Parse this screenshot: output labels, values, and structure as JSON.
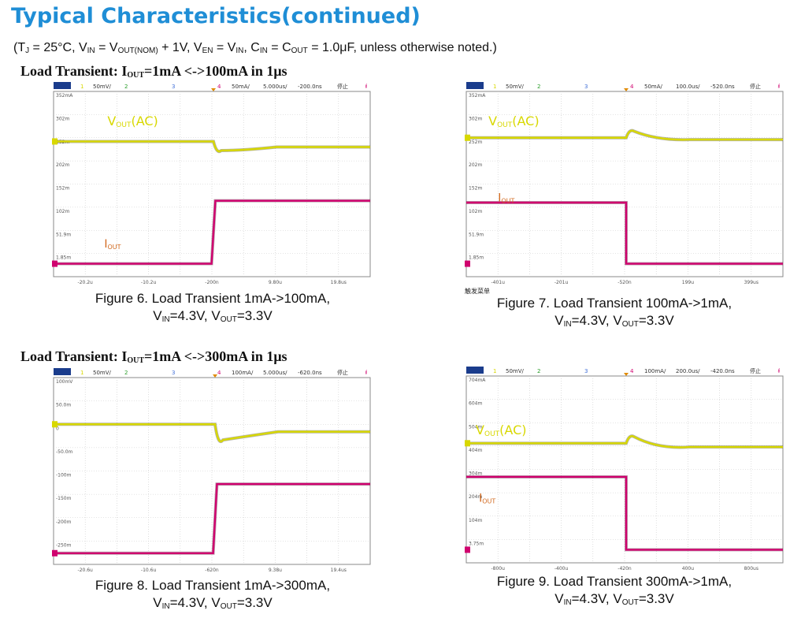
{
  "page": {
    "title": "Typical Characteristics(continued)",
    "conditions": {
      "c1": "(T",
      "c1s": "J",
      "c2": " = 25°C, V",
      "c2s": "IN",
      "c3": " = V",
      "c3s": "OUT(NOM)",
      "c4": " + 1V, V",
      "c4s": "EN",
      "c5": " = V",
      "c5s": "IN",
      "c6": ", C",
      "c6s": "IN",
      "c7": " = C",
      "c7s": "OUT",
      "c8": " = 1.0μF, unless otherwise noted.)"
    }
  },
  "sections": [
    {
      "pre": "Load Transient: I",
      "sub": "OUT",
      "post": "=1mA <->100mA in 1μs"
    },
    {
      "pre": "Load Transient: I",
      "sub": "OUT",
      "post": "=1mA <->300mA in 1μs"
    }
  ],
  "colors": {
    "vout_trace": "#d8d800",
    "iout_trace": "#d0006e",
    "label_vout": "#d8d800",
    "label_iout": "#d2691e",
    "grid": "#c9c9c9",
    "title": "#1f8ed6"
  },
  "figures": [
    {
      "id": "fig6",
      "header": {
        "ch1": "1",
        "ch1_scale": "50mV/",
        "ch2": "2",
        "ch3": "3",
        "ch4": "4",
        "ch4_scale": "50mA/",
        "timebase": "5.000us/",
        "offset": "-200.0ns",
        "state": "停止",
        "trig": "ᵮ"
      },
      "y_ticks": [
        "352mA",
        "302m",
        "252m",
        "202m",
        "152m",
        "102m",
        "51.9m",
        "1.85m"
      ],
      "x_ticks": [
        "-20.2u",
        "-10.2u",
        "-200n",
        "9.80u",
        "19.8us"
      ],
      "label_vout": {
        "pre": "V",
        "sub": "OUT",
        "post": "(AC)"
      },
      "label_iout": {
        "pre": "I",
        "sub": "OUT"
      },
      "caption_line1": "Figure 6. Load Transient 1mA->100mA,",
      "caption_line2": {
        "a": "V",
        "as": "IN",
        "b": "=4.3V, V",
        "bs": "OUT",
        "c": "=3.3V"
      },
      "extra_note": ""
    },
    {
      "id": "fig7",
      "header": {
        "ch1": "1",
        "ch1_scale": "50mV/",
        "ch2": "2",
        "ch3": "3",
        "ch4": "4",
        "ch4_scale": "50mA/",
        "timebase": "100.0us/",
        "offset": "-520.0ns",
        "state": "停止",
        "trig": "ᵮ"
      },
      "y_ticks": [
        "352mA",
        "302m",
        "252m",
        "202m",
        "152m",
        "102m",
        "51.9m",
        "1.85m"
      ],
      "x_ticks": [
        "-401u",
        "-201u",
        "-520n",
        "199u",
        "399us"
      ],
      "label_vout": {
        "pre": "V",
        "sub": "OUT",
        "post": "(AC)"
      },
      "label_iout": {
        "pre": "I",
        "sub": "OUT"
      },
      "caption_line1": "Figure 7. Load Transient 100mA->1mA,",
      "caption_line2": {
        "a": "V",
        "as": "IN",
        "b": "=4.3V, V",
        "bs": "OUT",
        "c": "=3.3V"
      },
      "extra_note": "触发菜单"
    },
    {
      "id": "fig8",
      "header": {
        "ch1": "1",
        "ch1_scale": "50mV/",
        "ch2": "2",
        "ch3": "3",
        "ch4": "4",
        "ch4_scale": "100mA/",
        "timebase": "5.000us/",
        "offset": "-620.0ns",
        "state": "停止",
        "trig": "ᵮ"
      },
      "y_ticks": [
        "100mV",
        "50.0m",
        "0",
        "-50.0m",
        "-100m",
        "-150m",
        "-200m",
        "-250m"
      ],
      "x_ticks": [
        "-20.6u",
        "-10.6u",
        "-620n",
        "9.38u",
        "19.4us"
      ],
      "label_vout": {
        "pre": "",
        "sub": "",
        "post": ""
      },
      "label_iout": {
        "pre": "",
        "sub": ""
      },
      "caption_line1": "Figure 8. Load Transient 1mA->300mA,",
      "caption_line2": {
        "a": "V",
        "as": "IN",
        "b": "=4.3V, V",
        "bs": "OUT",
        "c": "=3.3V"
      },
      "extra_note": ""
    },
    {
      "id": "fig9",
      "header": {
        "ch1": "1",
        "ch1_scale": "50mV/",
        "ch2": "2",
        "ch3": "3",
        "ch4": "4",
        "ch4_scale": "100mA/",
        "timebase": "200.0us/",
        "offset": "-420.0ns",
        "state": "停止",
        "trig": "ᵮ"
      },
      "y_ticks": [
        "704mA",
        "604m",
        "504m",
        "404m",
        "304m",
        "204m",
        "104m",
        "3.75m"
      ],
      "x_ticks": [
        "-800u",
        "-400u",
        "-420n",
        "400u",
        "800us"
      ],
      "label_vout": {
        "pre": "V",
        "sub": "OUT",
        "post": "(AC)"
      },
      "label_iout": {
        "pre": "I",
        "sub": "OUT"
      },
      "caption_line1": "Figure 9. Load Transient 300mA->1mA,",
      "caption_line2": {
        "a": "V",
        "as": "IN",
        "b": "=4.3V, V",
        "bs": "OUT",
        "c": "=3.3V"
      },
      "extra_note": ""
    }
  ]
}
